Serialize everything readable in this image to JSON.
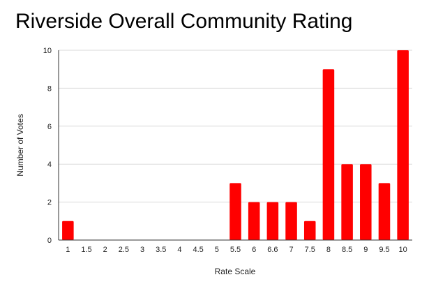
{
  "chart_data": {
    "type": "bar",
    "title": "Riverside Overall Community Rating",
    "xlabel": "Rate Scale",
    "ylabel": "Number of Votes",
    "categories": [
      "1",
      "1.5",
      "2",
      "2.5",
      "3",
      "3.5",
      "4",
      "4.5",
      "5",
      "5.5",
      "6",
      "6.6",
      "7",
      "7.5",
      "8",
      "8.5",
      "9",
      "9.5",
      "10"
    ],
    "values": [
      1,
      0,
      0,
      0,
      0,
      0,
      0,
      0,
      0,
      3,
      2,
      2,
      2,
      1,
      9,
      4,
      4,
      3,
      10
    ],
    "ylim": [
      0,
      10
    ],
    "yticks": [
      0,
      2,
      4,
      6,
      8,
      10
    ],
    "grid": true,
    "bar_color": "#ff0000",
    "grid_color": "#d9d9d9",
    "axis_color": "#333333"
  }
}
